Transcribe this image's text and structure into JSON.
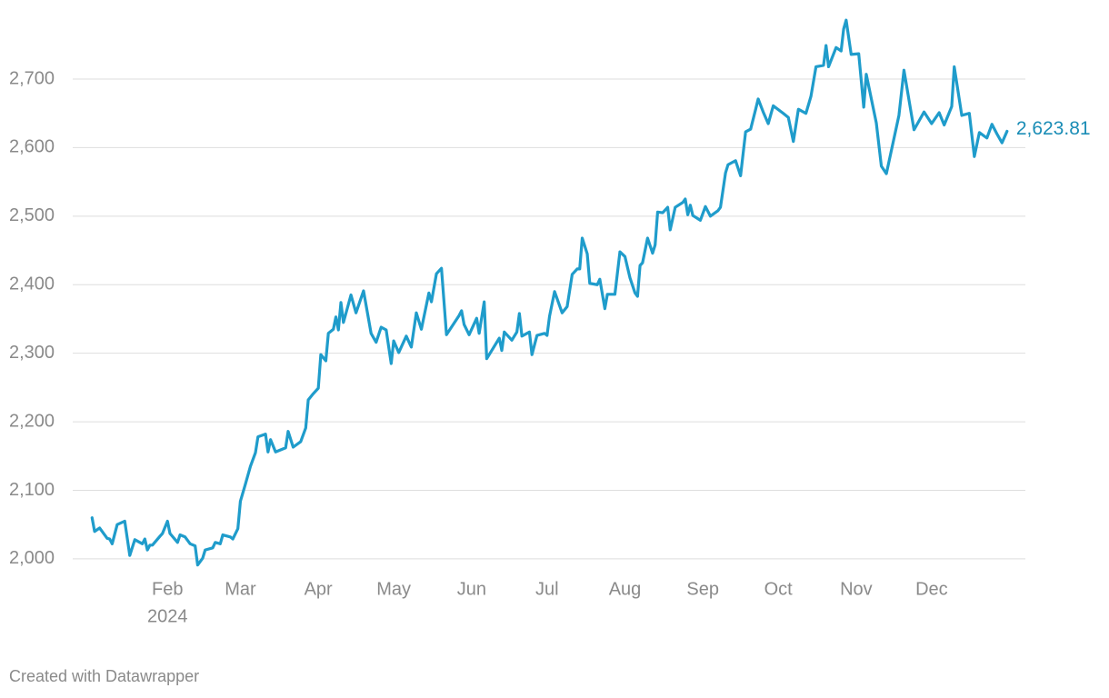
{
  "chart_data": {
    "type": "line",
    "x": [
      2,
      3,
      5,
      8,
      9,
      10,
      12,
      15,
      17,
      19,
      22,
      23,
      24,
      25,
      26,
      29,
      30,
      32,
      33,
      36,
      37,
      39,
      41,
      43,
      44,
      46,
      47,
      50,
      51,
      53,
      54,
      57,
      58,
      60,
      61,
      63,
      65,
      67,
      68,
      71,
      72,
      73,
      75,
      77,
      79,
      80,
      82,
      85,
      87,
      88,
      90,
      92,
      93,
      95,
      96,
      98,
      99,
      100,
      101,
      102,
      105,
      107,
      110,
      113,
      115,
      117,
      119,
      121,
      122,
      124,
      127,
      129,
      131,
      133,
      136,
      137,
      139,
      141,
      143,
      148,
      149,
      150,
      152,
      155,
      156,
      158,
      159,
      164,
      165,
      166,
      169,
      171,
      172,
      173,
      176,
      177,
      179,
      182,
      183,
      184,
      186,
      189,
      191,
      193,
      195,
      196,
      197,
      199,
      200,
      203,
      204,
      206,
      207,
      210,
      212,
      214,
      216,
      218,
      219,
      220,
      221,
      223,
      225,
      226,
      227,
      229,
      231,
      232,
      234,
      237,
      238,
      239,
      240,
      241,
      244,
      246,
      248,
      251,
      252,
      254,
      255,
      258,
      260,
      262,
      264,
      266,
      267,
      269,
      271,
      273,
      277,
      279,
      281,
      283,
      286,
      288,
      290,
      293,
      294,
      295,
      298,
      300,
      301,
      302,
      304,
      307,
      309,
      310,
      314,
      316,
      318,
      323,
      325,
      329,
      331,
      333,
      336,
      339,
      341,
      344,
      345,
      348,
      351,
      353,
      355,
      358,
      360,
      362,
      364,
      366
    ],
    "values": [
      2060,
      2040,
      2045,
      2030,
      2029,
      2022,
      2050,
      2055,
      2005,
      2028,
      2022,
      2029,
      2013,
      2020,
      2020,
      2033,
      2037,
      2055,
      2037,
      2024,
      2035,
      2032,
      2022,
      2019,
      1991,
      2001,
      2013,
      2016,
      2024,
      2022,
      2035,
      2032,
      2029,
      2044,
      2084,
      2109,
      2135,
      2155,
      2178,
      2182,
      2156,
      2174,
      2156,
      2159,
      2162,
      2186,
      2163,
      2171,
      2191,
      2232,
      2241,
      2249,
      2298,
      2289,
      2329,
      2335,
      2353,
      2334,
      2374,
      2345,
      2385,
      2359,
      2391,
      2329,
      2316,
      2338,
      2334,
      2285,
      2318,
      2301,
      2325,
      2309,
      2359,
      2335,
      2388,
      2375,
      2416,
      2424,
      2327,
      2355,
      2362,
      2342,
      2327,
      2351,
      2329,
      2375,
      2292,
      2322,
      2304,
      2331,
      2319,
      2331,
      2358,
      2325,
      2331,
      2298,
      2326,
      2329,
      2326,
      2354,
      2390,
      2359,
      2368,
      2415,
      2423,
      2423,
      2468,
      2445,
      2402,
      2400,
      2408,
      2365,
      2386,
      2386,
      2448,
      2441,
      2410,
      2388,
      2383,
      2428,
      2432,
      2468,
      2446,
      2458,
      2506,
      2505,
      2513,
      2480,
      2513,
      2520,
      2525,
      2502,
      2516,
      2501,
      2494,
      2514,
      2500,
      2508,
      2513,
      2563,
      2575,
      2581,
      2559,
      2623,
      2627,
      2656,
      2671,
      2652,
      2635,
      2661,
      2650,
      2644,
      2609,
      2656,
      2650,
      2675,
      2718,
      2720,
      2749,
      2718,
      2746,
      2741,
      2773,
      2786,
      2736,
      2737,
      2659,
      2707,
      2636,
      2573,
      2562,
      2647,
      2713,
      2626,
      2639,
      2652,
      2635,
      2651,
      2633,
      2660,
      2718,
      2647,
      2650,
      2587,
      2622,
      2614,
      2634,
      2620,
      2607,
      2623.81
    ],
    "end_label": "2,623.81",
    "color": "#1f9ccb",
    "label_color": "#1b8db6",
    "xlim": [
      -5.7,
      373.3
    ],
    "xticks": [
      {
        "value": 32,
        "label": "Feb"
      },
      {
        "value": 61,
        "label": "Mar"
      },
      {
        "value": 92,
        "label": "Apr"
      },
      {
        "value": 122,
        "label": "May"
      },
      {
        "value": 153,
        "label": "Jun"
      },
      {
        "value": 183,
        "label": "Jul"
      },
      {
        "value": 214,
        "label": "Aug"
      },
      {
        "value": 245,
        "label": "Sep"
      },
      {
        "value": 275,
        "label": "Oct"
      },
      {
        "value": 306,
        "label": "Nov"
      },
      {
        "value": 336,
        "label": "Dec"
      }
    ],
    "year_label": "2024",
    "ylim": [
      1980,
      2800
    ],
    "yticks": [
      {
        "value": 2000,
        "label": "2,000"
      },
      {
        "value": 2100,
        "label": "2,100"
      },
      {
        "value": 2200,
        "label": "2,200"
      },
      {
        "value": 2300,
        "label": "2,300"
      },
      {
        "value": 2400,
        "label": "2,400"
      },
      {
        "value": 2500,
        "label": "2,500"
      },
      {
        "value": 2600,
        "label": "2,600"
      },
      {
        "value": 2700,
        "label": "2,700"
      }
    ],
    "grid": true,
    "footer": "Created with Datawrapper"
  }
}
